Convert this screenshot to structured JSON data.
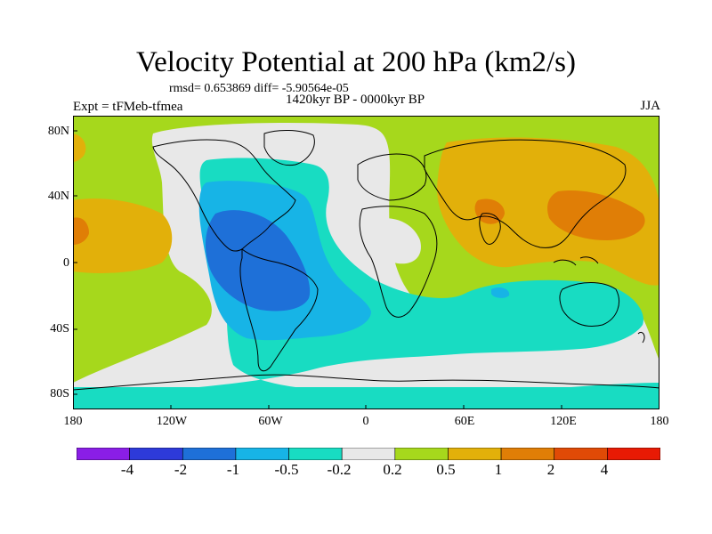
{
  "title": "Velocity Potential at 200 hPa (km2/s)",
  "stats": "rmsd= 0.653869 diff= -5.90564e-05",
  "period": "1420kyr BP - 0000kyr BP",
  "experiment": "Expt = tFMeb-tfmea",
  "season": "JJA",
  "lat_ticks": [
    "80N",
    "40N",
    "0",
    "40S",
    "80S"
  ],
  "lon_ticks": [
    "180",
    "120W",
    "60W",
    "0",
    "60E",
    "120E",
    "180"
  ],
  "colorbar": {
    "labels": [
      "-4",
      "-2",
      "-1",
      "-0.5",
      "-0.2",
      "0.2",
      "0.5",
      "1",
      "2",
      "4"
    ],
    "colors": [
      "#8a1ee6",
      "#2d3ad9",
      "#1e70d8",
      "#17b4e6",
      "#18dcc2",
      "#e8e8e8",
      "#a6d81c",
      "#e2b00a",
      "#e07e06",
      "#e04a06",
      "#e81a04"
    ]
  },
  "palette": {
    "gray": "#e8e8e8",
    "green": "#a6d81c",
    "orange1": "#e2b00a",
    "orange2": "#e07e06",
    "teal": "#18dcc2",
    "cyan": "#17b4e6",
    "blue1": "#1e70d8"
  }
}
